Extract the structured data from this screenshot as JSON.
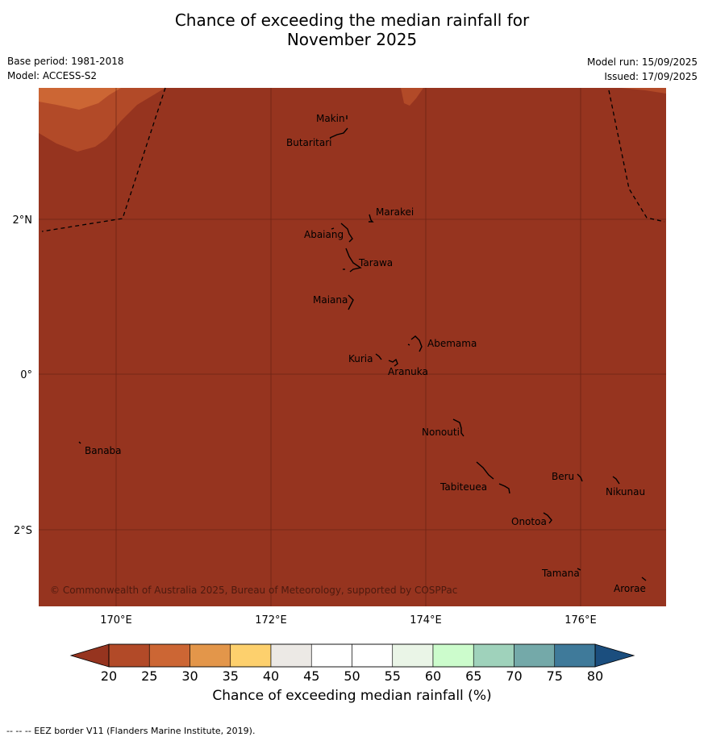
{
  "header": {
    "title_line1": "Chance of exceeding the median rainfall for",
    "title_line2": "November 2025",
    "base_period": "Base period: 1981-2018",
    "model": "Model: ACCESS-S2",
    "model_run": "Model run: 15/09/2025",
    "issued": "Issued: 17/09/2025"
  },
  "map": {
    "lon_ticks": [
      "170°E",
      "172°E",
      "174°E",
      "176°E"
    ],
    "lat_ticks": [
      "2°N",
      "0°",
      "2°S"
    ],
    "copyright": "© Commonwealth of Australia 2025, Bureau of Meteorology, supported by COSPPac",
    "places": [
      "Makin",
      "Butaritari",
      "Marakei",
      "Abaiang",
      "Tarawa",
      "Maiana",
      "Abemama",
      "Kuria",
      "Aranuka",
      "Nonouti",
      "Banaba",
      "Beru",
      "Nikunau",
      "Tabiteuea",
      "Onotoa",
      "Tamana",
      "Arorae"
    ]
  },
  "colorbar": {
    "ticks": [
      "20",
      "25",
      "30",
      "35",
      "40",
      "45",
      "50",
      "55",
      "60",
      "65",
      "70",
      "75",
      "80"
    ],
    "colors": [
      "#b24a28",
      "#cc6634",
      "#e3964a",
      "#fdd06d",
      "#ece9e5",
      "#ffffff",
      "#ffffff",
      "#eaf5e7",
      "#ccfccc",
      "#9fd2bb",
      "#74a9a9",
      "#3f7a9a"
    ],
    "below_color": "#96341f",
    "above_color": "#1b4e7e",
    "label": "Chance of exceeding median rainfall (%)"
  },
  "footer": {
    "legend": "--  --  -- EEZ border V11 (Flanders Marine Institute, 2019)."
  }
}
